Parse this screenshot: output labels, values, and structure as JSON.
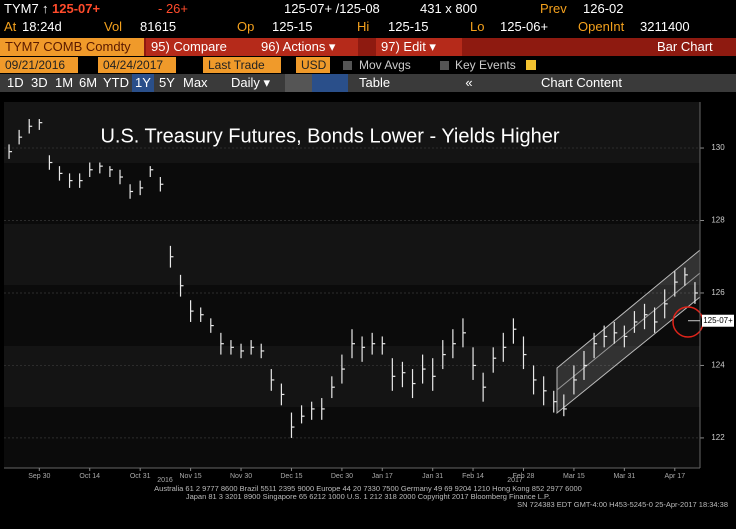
{
  "ui": {
    "quote": {
      "ticker": "TYM7",
      "arrow": "↑",
      "last": "125-07+",
      "change": "- 26+",
      "bid_ask": "125-07+ /125-08",
      "size": "431 x 800",
      "prev_label": "Prev",
      "prev": "126-02"
    },
    "stats": {
      "at_label": "At",
      "at": "18:24d",
      "vol_label": "Vol",
      "vol": "81615",
      "op_label": "Op",
      "op": "125-15",
      "hi_label": "Hi",
      "hi": "125-15",
      "lo_label": "Lo",
      "lo": "125-06+",
      "oi_label": "OpenInt",
      "oi": "3211400"
    },
    "menu": {
      "security": "TYM7 COMB Comdty",
      "compare": "95) Compare",
      "actions": "96) Actions ▾",
      "edit": "97) Edit ▾",
      "view": "Bar Chart"
    },
    "settings": {
      "start": "09/21/2016",
      "end": "04/24/2017",
      "field": "Last Trade",
      "currency": "USD",
      "mov_avgs": "Mov Avgs",
      "key_events": "Key Events"
    },
    "toolbar": {
      "periods": [
        "1D",
        "3D",
        "1M",
        "6M",
        "YTD",
        "1Y",
        "5Y",
        "Max"
      ],
      "frequency": "Daily ▾",
      "table": "Table",
      "collapse": "«",
      "chart_content": "Chart Content"
    },
    "footer": [
      "Australia 61 2 9777 8600 Brazil 5511 2395 9000 Europe 44 20 7330 7500 Germany 49 69 9204 1210 Hong Kong 852 2977 6000",
      "Japan 81 3 3201 8900 Singapore 65 6212 1000 U.S. 1 212 318 2000 Copyright 2017 Bloomberg Finance L.P.",
      "SN 724383 EDT GMT-4:00 H453-5245-0 25-Apr-2017 18:34:38"
    ]
  },
  "chart_data": {
    "type": "hlc",
    "title": "U.S. Treasury Futures, Bonds Lower - Yields Higher",
    "color": "#e8e8e8",
    "categories": [
      null,
      null,
      null,
      "Sep 30",
      null,
      null,
      null,
      null,
      "Oct 14",
      null,
      null,
      null,
      null,
      "Oct 31",
      null,
      null,
      null,
      null,
      "Nov 15",
      null,
      null,
      null,
      null,
      "Nov 30",
      null,
      null,
      null,
      null,
      "Dec 15",
      null,
      null,
      null,
      null,
      "Dec 30",
      null,
      null,
      null,
      "Jan 17",
      null,
      null,
      null,
      null,
      "Jan 31",
      null,
      null,
      null,
      "Feb 14",
      null,
      null,
      null,
      null,
      "Feb 28",
      null,
      null,
      null,
      null,
      "Mar 15",
      null,
      null,
      null,
      null,
      "Mar 31",
      null,
      null,
      null,
      null,
      "Apr 17",
      null,
      null
    ],
    "year_labels": [
      "2016",
      "2017"
    ],
    "high": [
      130.1,
      130.5,
      130.8,
      130.8,
      129.8,
      129.5,
      129.3,
      129.3,
      129.6,
      129.6,
      129.5,
      129.4,
      129.0,
      129.1,
      129.5,
      129.2,
      127.3,
      126.5,
      125.8,
      125.6,
      125.3,
      124.9,
      124.7,
      124.6,
      124.7,
      124.6,
      123.9,
      123.5,
      122.7,
      122.9,
      123.0,
      123.1,
      123.7,
      124.3,
      125.0,
      124.8,
      124.9,
      124.8,
      124.2,
      124.1,
      123.9,
      124.3,
      124.2,
      124.7,
      125.0,
      125.3,
      124.5,
      123.8,
      124.5,
      124.9,
      125.3,
      124.8,
      124.0,
      123.7,
      123.3,
      123.2,
      124.0,
      124.4,
      124.9,
      125.1,
      125.2,
      125.1,
      125.5,
      125.7,
      125.6,
      126.1,
      126.6,
      126.7,
      126.3
    ],
    "low": [
      129.7,
      130.1,
      130.4,
      130.5,
      129.4,
      129.1,
      128.9,
      128.9,
      129.2,
      129.3,
      129.2,
      129.0,
      128.6,
      128.7,
      129.2,
      128.8,
      126.7,
      125.9,
      125.2,
      125.2,
      124.9,
      124.3,
      124.3,
      124.2,
      124.3,
      124.2,
      123.3,
      122.9,
      122.0,
      122.4,
      122.5,
      122.5,
      123.1,
      123.5,
      124.2,
      124.1,
      124.3,
      124.3,
      123.3,
      123.4,
      123.1,
      123.5,
      123.3,
      123.9,
      124.2,
      124.5,
      123.6,
      123.0,
      123.8,
      124.1,
      124.6,
      123.9,
      123.2,
      122.9,
      122.7,
      122.6,
      123.2,
      123.6,
      124.2,
      124.5,
      124.6,
      124.5,
      124.9,
      125.0,
      124.9,
      125.3,
      125.9,
      126.2,
      125.7
    ],
    "close": [
      129.9,
      130.3,
      130.6,
      130.7,
      129.6,
      129.3,
      129.1,
      129.1,
      129.4,
      129.5,
      129.4,
      129.2,
      128.8,
      128.9,
      129.4,
      129.0,
      127.0,
      126.2,
      125.5,
      125.4,
      125.1,
      124.6,
      124.5,
      124.4,
      124.5,
      124.4,
      123.6,
      123.2,
      122.3,
      122.6,
      122.8,
      122.8,
      123.4,
      123.9,
      124.6,
      124.5,
      124.6,
      124.6,
      123.7,
      123.8,
      123.5,
      123.9,
      123.7,
      124.3,
      124.6,
      124.9,
      124.0,
      123.4,
      124.2,
      124.5,
      125.0,
      124.3,
      123.6,
      123.3,
      123.0,
      122.8,
      123.6,
      124.0,
      124.6,
      124.8,
      124.9,
      124.8,
      125.2,
      125.4,
      125.2,
      125.7,
      126.3,
      126.5,
      126.0
    ],
    "ylim": [
      121.17,
      131.27
    ],
    "yticks": [
      122,
      124,
      126,
      128,
      130
    ],
    "grid": true,
    "last_price": {
      "value": 125.234,
      "label": "125-07+"
    }
  }
}
